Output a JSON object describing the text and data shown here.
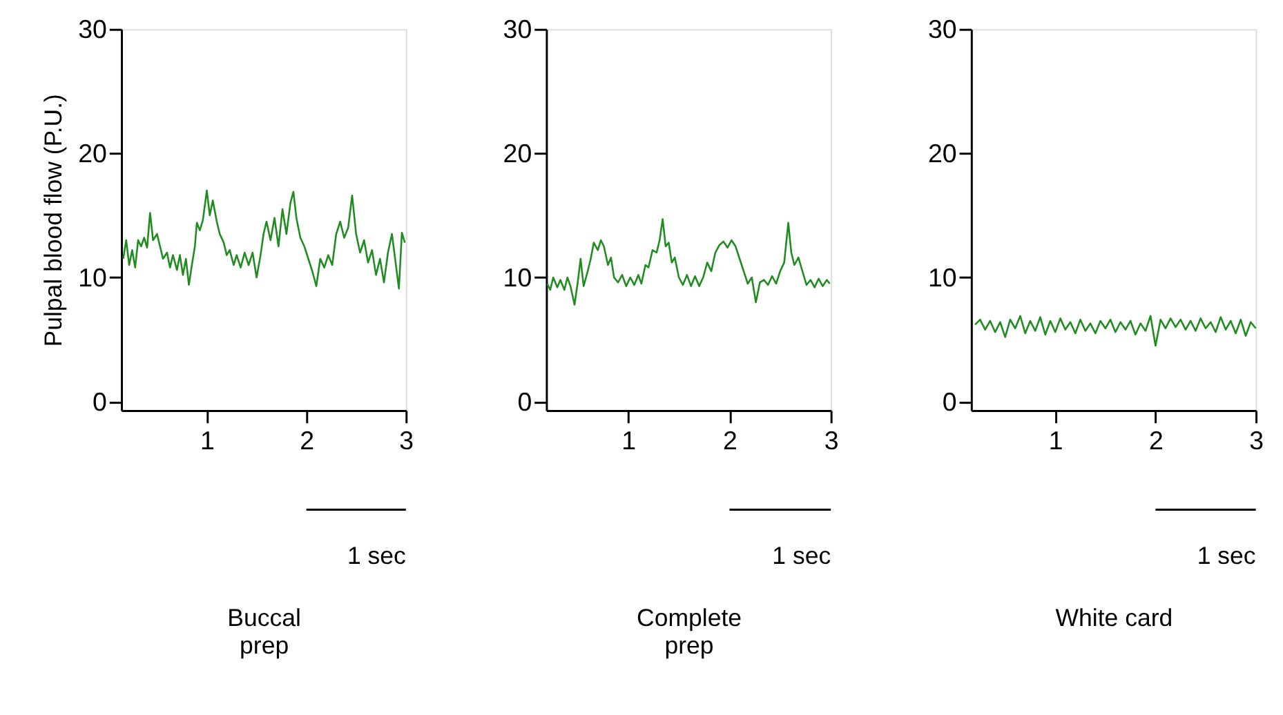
{
  "chart_data": [
    {
      "type": "line",
      "ylabel": "Pulpal blood flow (P.U.)",
      "xlabel": "Buccal\nprep",
      "annotations": [
        "1 sec"
      ],
      "xlim": [
        0.14,
        3
      ],
      "ylim": [
        -0.7,
        30
      ],
      "xticks": [
        1,
        2,
        3
      ],
      "yticks": [
        0,
        10,
        20,
        30
      ],
      "x": [
        0.16,
        0.19,
        0.22,
        0.25,
        0.28,
        0.31,
        0.34,
        0.37,
        0.4,
        0.43,
        0.46,
        0.5,
        0.53,
        0.56,
        0.6,
        0.63,
        0.66,
        0.7,
        0.73,
        0.76,
        0.79,
        0.82,
        0.85,
        0.88,
        0.9,
        0.93,
        0.96,
        1.0,
        1.03,
        1.06,
        1.1,
        1.13,
        1.17,
        1.2,
        1.23,
        1.27,
        1.3,
        1.34,
        1.38,
        1.42,
        1.46,
        1.5,
        1.54,
        1.57,
        1.6,
        1.64,
        1.68,
        1.72,
        1.76,
        1.8,
        1.84,
        1.87,
        1.9,
        1.94,
        1.98,
        2.02,
        2.06,
        2.1,
        2.14,
        2.18,
        2.22,
        2.26,
        2.3,
        2.34,
        2.38,
        2.42,
        2.46,
        2.5,
        2.54,
        2.58,
        2.62,
        2.66,
        2.7,
        2.74,
        2.78,
        2.82,
        2.86,
        2.9,
        2.93,
        2.96,
        2.99
      ],
      "series": [
        {
          "color": "#1e8c1e",
          "values": [
            11.5,
            13,
            11,
            12.2,
            10.8,
            13,
            12.5,
            13.2,
            12.4,
            15.2,
            13,
            13.5,
            12.5,
            11.5,
            12,
            10.8,
            11.8,
            10.6,
            11.8,
            10.2,
            11.5,
            9.4,
            11,
            12.5,
            14.4,
            13.8,
            14.6,
            17,
            15,
            16.2,
            14.5,
            13.5,
            12.8,
            11.8,
            12.2,
            11,
            11.8,
            10.8,
            12,
            11,
            12,
            10,
            11.8,
            13.5,
            14.5,
            13,
            14.8,
            12.5,
            15.5,
            13.5,
            16,
            16.9,
            14.8,
            13.2,
            12.5,
            11.5,
            10.5,
            9.3,
            11.5,
            10.8,
            11.8,
            11,
            13.5,
            14.5,
            13.2,
            14,
            16.6,
            13.5,
            12,
            13,
            11.2,
            12.2,
            10.2,
            11.5,
            9.6,
            12,
            13.5,
            11,
            9.1,
            13.6,
            12.8
          ]
        }
      ]
    },
    {
      "type": "line",
      "xlabel": "Complete\nprep",
      "annotations": [
        "1 sec"
      ],
      "xlim": [
        0.19,
        3
      ],
      "ylim": [
        -0.7,
        30
      ],
      "xticks": [
        1,
        2,
        3
      ],
      "yticks": [
        0,
        10,
        20,
        30
      ],
      "x": [
        0.2,
        0.23,
        0.26,
        0.3,
        0.33,
        0.37,
        0.4,
        0.43,
        0.47,
        0.5,
        0.53,
        0.56,
        0.6,
        0.63,
        0.66,
        0.7,
        0.73,
        0.76,
        0.8,
        0.83,
        0.86,
        0.9,
        0.94,
        0.98,
        1.02,
        1.06,
        1.1,
        1.13,
        1.17,
        1.2,
        1.24,
        1.28,
        1.31,
        1.34,
        1.37,
        1.4,
        1.43,
        1.46,
        1.5,
        1.54,
        1.58,
        1.62,
        1.66,
        1.7,
        1.74,
        1.78,
        1.82,
        1.86,
        1.9,
        1.94,
        1.98,
        2.02,
        2.06,
        2.1,
        2.14,
        2.18,
        2.22,
        2.26,
        2.3,
        2.34,
        2.38,
        2.42,
        2.46,
        2.5,
        2.54,
        2.58,
        2.61,
        2.64,
        2.68,
        2.72,
        2.76,
        2.8,
        2.84,
        2.88,
        2.92,
        2.96,
        2.99
      ],
      "series": [
        {
          "color": "#1e8c1e",
          "values": [
            9.5,
            9,
            10,
            9.2,
            9.8,
            9,
            10,
            9.3,
            7.8,
            9.5,
            11.5,
            9.3,
            10.5,
            11.5,
            12.8,
            12.2,
            13,
            12.5,
            11,
            11.6,
            10,
            9.6,
            10.2,
            9.3,
            10,
            9.4,
            10.2,
            9.5,
            11,
            10.8,
            12.2,
            12,
            13,
            14.7,
            12.5,
            12.8,
            11.2,
            11.6,
            10,
            9.4,
            10.2,
            9.3,
            10.1,
            9.3,
            10,
            11.2,
            10.5,
            12,
            12.6,
            12.9,
            12.4,
            13,
            12.5,
            11.5,
            10.5,
            9.5,
            10,
            8,
            9.6,
            9.8,
            9.4,
            10.1,
            9.5,
            10.5,
            11.2,
            14.4,
            12,
            11,
            11.6,
            10.5,
            9.4,
            9.8,
            9.2,
            9.9,
            9.3,
            9.8,
            9.5
          ]
        }
      ]
    },
    {
      "type": "line",
      "xlabel": "White card",
      "annotations": [
        "1 sec"
      ],
      "xlim": [
        0.16,
        3
      ],
      "ylim": [
        -0.7,
        30
      ],
      "xticks": [
        1,
        2,
        3
      ],
      "yticks": [
        0,
        10,
        20,
        30
      ],
      "x": [
        0.2,
        0.25,
        0.3,
        0.35,
        0.4,
        0.45,
        0.5,
        0.55,
        0.6,
        0.65,
        0.7,
        0.75,
        0.8,
        0.85,
        0.9,
        0.95,
        1.0,
        1.05,
        1.1,
        1.15,
        1.2,
        1.25,
        1.3,
        1.35,
        1.4,
        1.45,
        1.5,
        1.55,
        1.6,
        1.65,
        1.7,
        1.75,
        1.8,
        1.85,
        1.9,
        1.95,
        2.0,
        2.05,
        2.1,
        2.15,
        2.2,
        2.25,
        2.3,
        2.35,
        2.4,
        2.45,
        2.5,
        2.55,
        2.6,
        2.65,
        2.7,
        2.75,
        2.8,
        2.85,
        2.9,
        2.95,
        3.0
      ],
      "series": [
        {
          "color": "#1e8c1e",
          "values": [
            6.2,
            6.6,
            5.8,
            6.5,
            5.6,
            6.4,
            5.2,
            6.6,
            5.9,
            6.9,
            5.5,
            6.5,
            5.7,
            6.8,
            5.4,
            6.5,
            5.6,
            6.7,
            5.8,
            6.4,
            5.5,
            6.6,
            5.7,
            6.3,
            5.5,
            6.5,
            5.9,
            6.6,
            5.6,
            6.4,
            5.8,
            6.5,
            5.4,
            6.3,
            5.7,
            6.9,
            4.5,
            6.6,
            5.9,
            6.7,
            6,
            6.6,
            5.8,
            6.5,
            5.7,
            6.7,
            5.9,
            6.4,
            5.6,
            6.8,
            5.8,
            6.5,
            5.5,
            6.6,
            5.3,
            6.4,
            5.9
          ]
        }
      ]
    }
  ]
}
